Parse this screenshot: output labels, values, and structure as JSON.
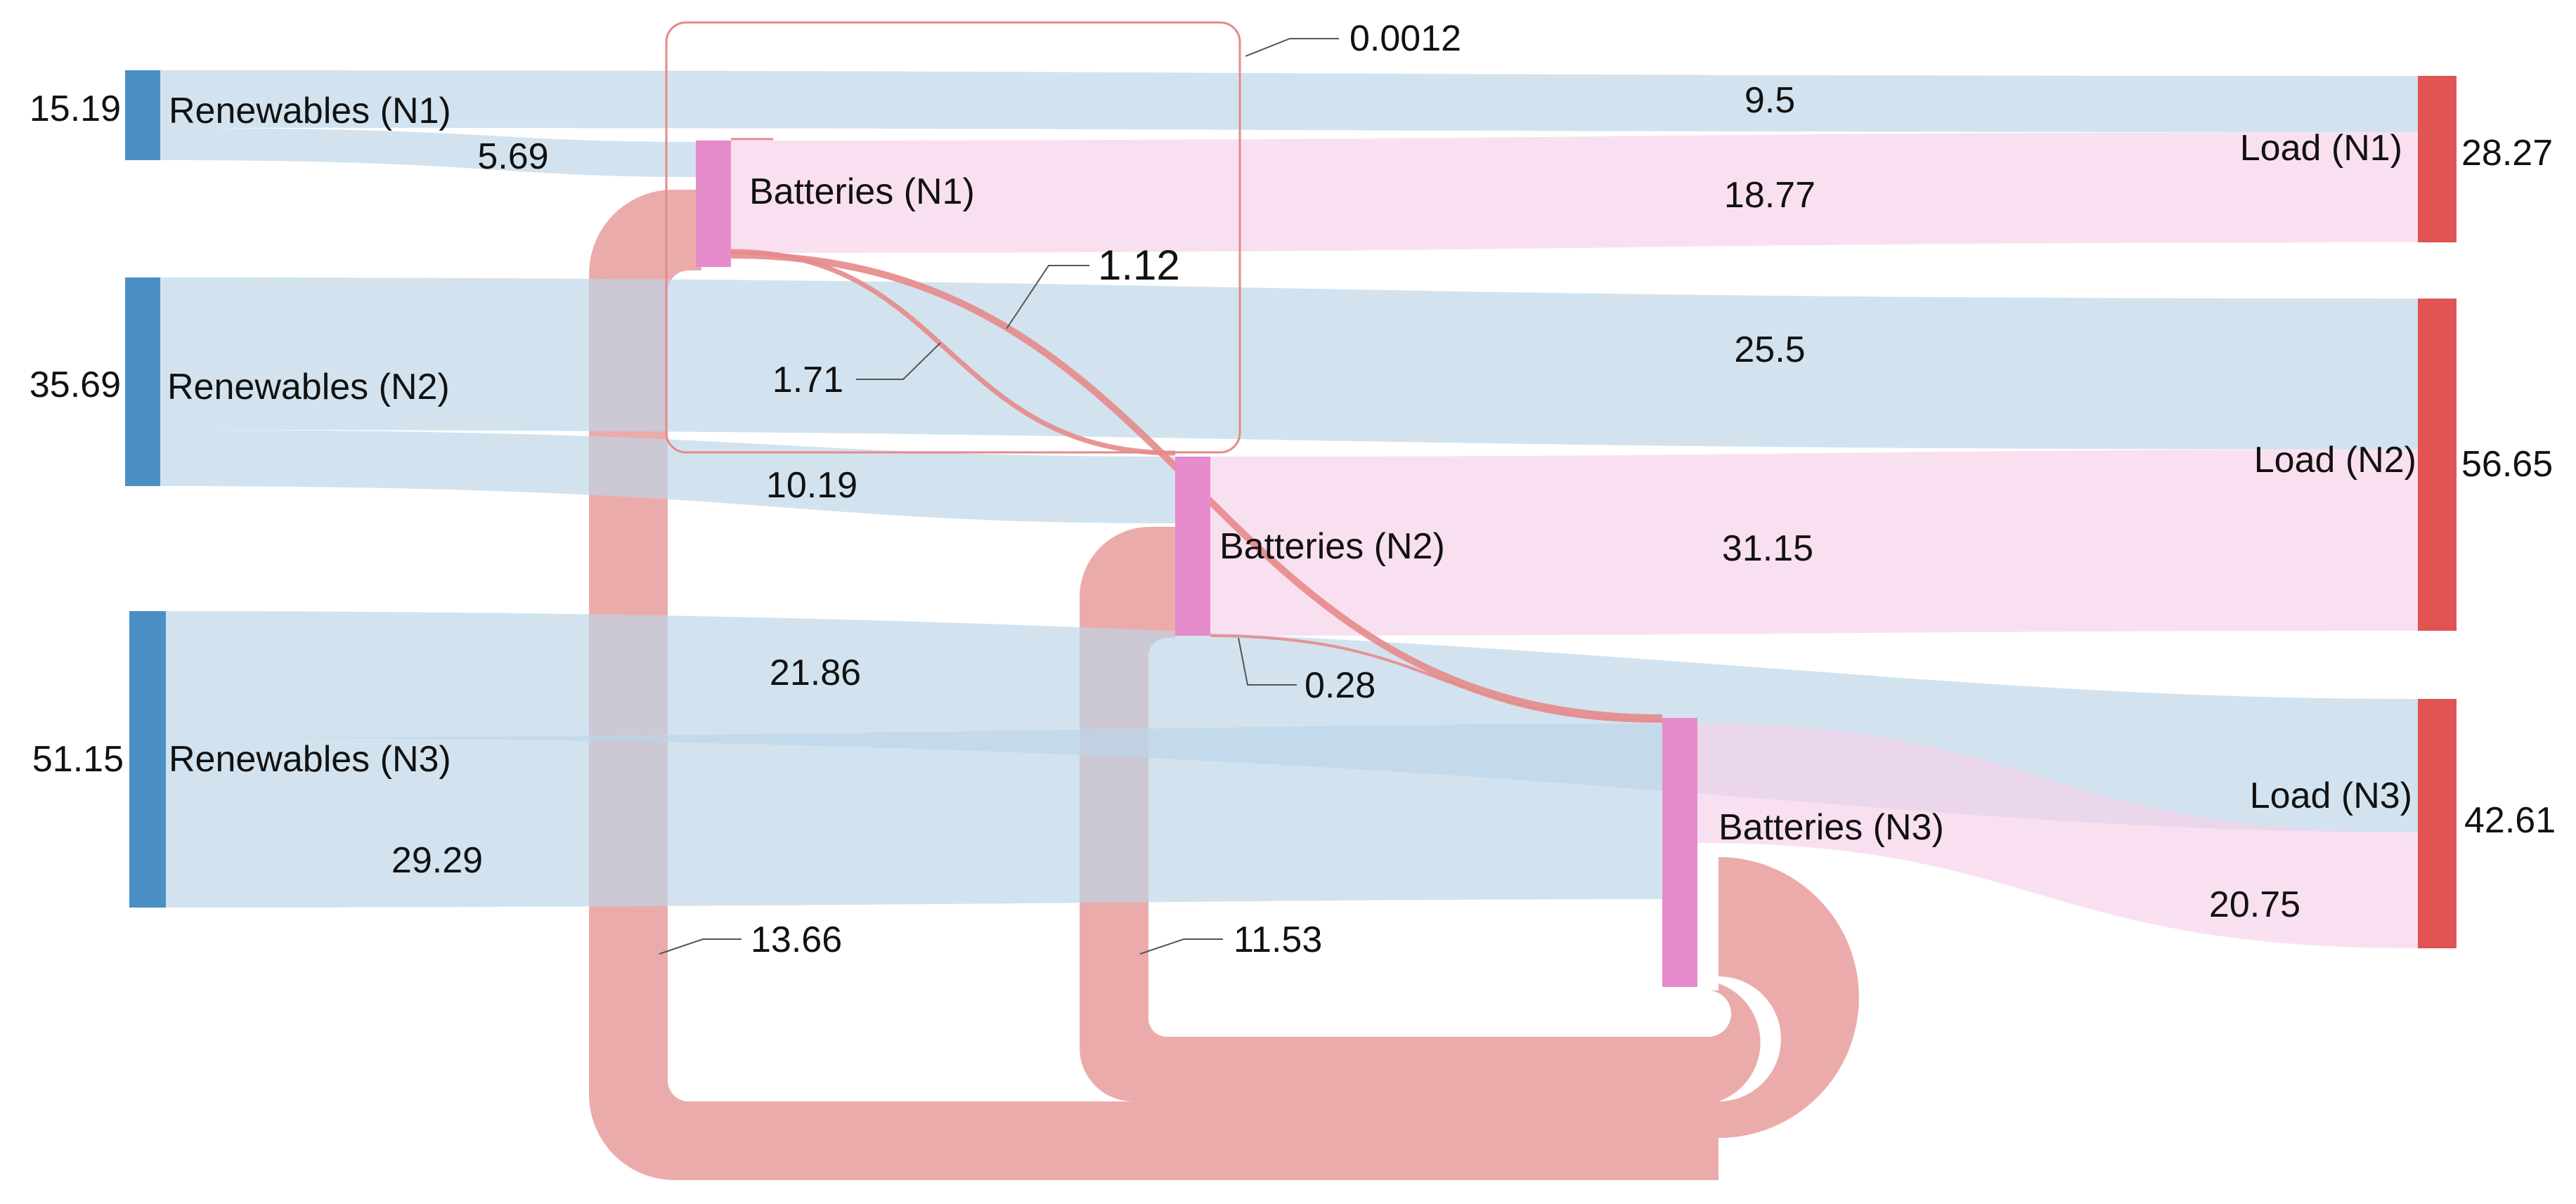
{
  "colors": {
    "renewables": "#4a90c4",
    "batteries": "#e68bcb",
    "load": "#e05454",
    "flow_renewable": "#bcd5e8",
    "flow_battery_to_load": "#f6d2ea",
    "flow_battery_transfer": "#e58a8a"
  },
  "nodes": {
    "renewables_n1": {
      "label": "Renewables (N1)",
      "value": "15.19"
    },
    "renewables_n2": {
      "label": "Renewables (N2)",
      "value": "35.69"
    },
    "renewables_n3": {
      "label": "Renewables (N3)",
      "value": "51.15"
    },
    "batteries_n1": {
      "label": "Batteries (N1)"
    },
    "batteries_n2": {
      "label": "Batteries (N2)"
    },
    "batteries_n3": {
      "label": "Batteries (N3)"
    },
    "load_n1": {
      "label": "Load (N1)",
      "value": "28.27"
    },
    "load_n2": {
      "label": "Load (N2)",
      "value": "56.65"
    },
    "load_n3": {
      "label": "Load (N3)",
      "value": "42.61"
    }
  },
  "flows": {
    "r1_load1": "9.5",
    "r1_bat1": "5.69",
    "bat1_load1": "18.77",
    "bat1_bat1": "0.0012",
    "bat1_bat2": "1.12",
    "bat1_bat3": "1.71",
    "bat1_bat3_loop": "13.66",
    "r2_load2": "25.5",
    "r2_bat2": "10.19",
    "bat2_load2": "31.15",
    "bat2_bat3": "0.28",
    "bat2_bat3_loop": "11.53",
    "r3_load3": "21.86",
    "r3_bat3": "29.29",
    "bat3_load3": "20.75"
  },
  "chart_data": {
    "type": "sankey",
    "nodes": [
      "Renewables (N1)",
      "Renewables (N2)",
      "Renewables (N3)",
      "Batteries (N1)",
      "Batteries (N2)",
      "Batteries (N3)",
      "Load (N1)",
      "Load (N2)",
      "Load (N3)"
    ],
    "node_totals": {
      "Renewables (N1)": 15.19,
      "Renewables (N2)": 35.69,
      "Renewables (N3)": 51.15,
      "Load (N1)": 28.27,
      "Load (N2)": 56.65,
      "Load (N3)": 42.61
    },
    "links": [
      {
        "source": "Renewables (N1)",
        "target": "Load (N1)",
        "value": 9.5
      },
      {
        "source": "Renewables (N1)",
        "target": "Batteries (N1)",
        "value": 5.69
      },
      {
        "source": "Batteries (N1)",
        "target": "Load (N1)",
        "value": 18.77
      },
      {
        "source": "Renewables (N2)",
        "target": "Load (N2)",
        "value": 25.5
      },
      {
        "source": "Renewables (N2)",
        "target": "Batteries (N2)",
        "value": 10.19
      },
      {
        "source": "Batteries (N2)",
        "target": "Load (N2)",
        "value": 31.15
      },
      {
        "source": "Renewables (N3)",
        "target": "Load (N3)",
        "value": 21.86
      },
      {
        "source": "Renewables (N3)",
        "target": "Batteries (N3)",
        "value": 29.29
      },
      {
        "source": "Batteries (N3)",
        "target": "Load (N3)",
        "value": 20.75
      },
      {
        "source": "Batteries (N1)",
        "target": "Batteries (N1)",
        "value": 0.0012
      },
      {
        "source": "Batteries (N1)",
        "target": "Batteries (N2)",
        "value": 1.12
      },
      {
        "source": "Batteries (N1)",
        "target": "Batteries (N3)",
        "value": 1.71
      },
      {
        "source": "Batteries (N2)",
        "target": "Batteries (N3)",
        "value": 0.28
      },
      {
        "source": "Batteries (N3)",
        "target": "Batteries (N1)",
        "value": 13.66
      },
      {
        "source": "Batteries (N3)",
        "target": "Batteries (N2)",
        "value": 11.53
      }
    ]
  }
}
